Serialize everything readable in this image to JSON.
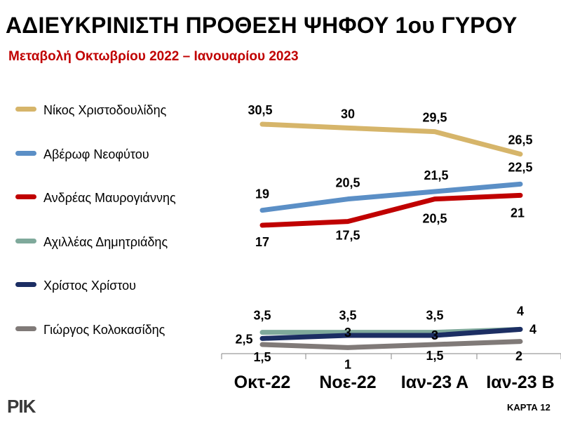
{
  "header": {
    "title": "ΑΔΙΕΥΚΡΙΝΙΣΤΗ ΠΡΟΘΕΣΗ ΨΗΦΟΥ 1ου ΓΥΡΟΥ",
    "subtitle": "Μεταβολή Οκτωβρίου 2022 – Ιανουαρίου 2023"
  },
  "footer": {
    "logo": "ΡΙΚ",
    "card": "ΚΑΡΤΑ 12"
  },
  "chart_data": {
    "type": "line",
    "categories": [
      "Οκτ-22",
      "Νοε-22",
      "Ιαν-23 Α",
      "Ιαν-23 Β"
    ],
    "series": [
      {
        "name": "Νίκος Χριστοδουλίδης",
        "color": "#d6b56a",
        "values": [
          30.5,
          30,
          29.5,
          26.5
        ],
        "labels": [
          "30,5",
          "30",
          "29,5",
          "26,5"
        ]
      },
      {
        "name": "Αβέρωφ Νεοφύτου",
        "color": "#5b8fc6",
        "values": [
          19,
          20.5,
          21.5,
          22.5
        ],
        "labels": [
          "19",
          "20,5",
          "21,5",
          "22,5"
        ]
      },
      {
        "name": "Ανδρέας Μαυρογιάννης",
        "color": "#c00000",
        "values": [
          17,
          17.5,
          20.5,
          21
        ],
        "labels": [
          "17",
          "17,5",
          "20,5",
          "21"
        ]
      },
      {
        "name": "Αχιλλέας Δημητριάδης",
        "color": "#7fa99b",
        "values": [
          3.5,
          3.5,
          3.5,
          4
        ],
        "labels": [
          "3,5",
          "3,5",
          "3,5",
          "4"
        ]
      },
      {
        "name": "Χρίστος Χρίστου",
        "color": "#1c2e63",
        "values": [
          2.5,
          3,
          3,
          4
        ],
        "labels": [
          "2,5",
          "3",
          "3",
          "4"
        ]
      },
      {
        "name": "Γιώργος Κολοκασίδης",
        "color": "#807a78",
        "values": [
          1.5,
          1,
          1.5,
          2
        ],
        "labels": [
          "1,5",
          "1",
          "1,5",
          "2"
        ]
      }
    ],
    "ylim": [
      0,
      32
    ],
    "grid": false,
    "legend": "left"
  }
}
